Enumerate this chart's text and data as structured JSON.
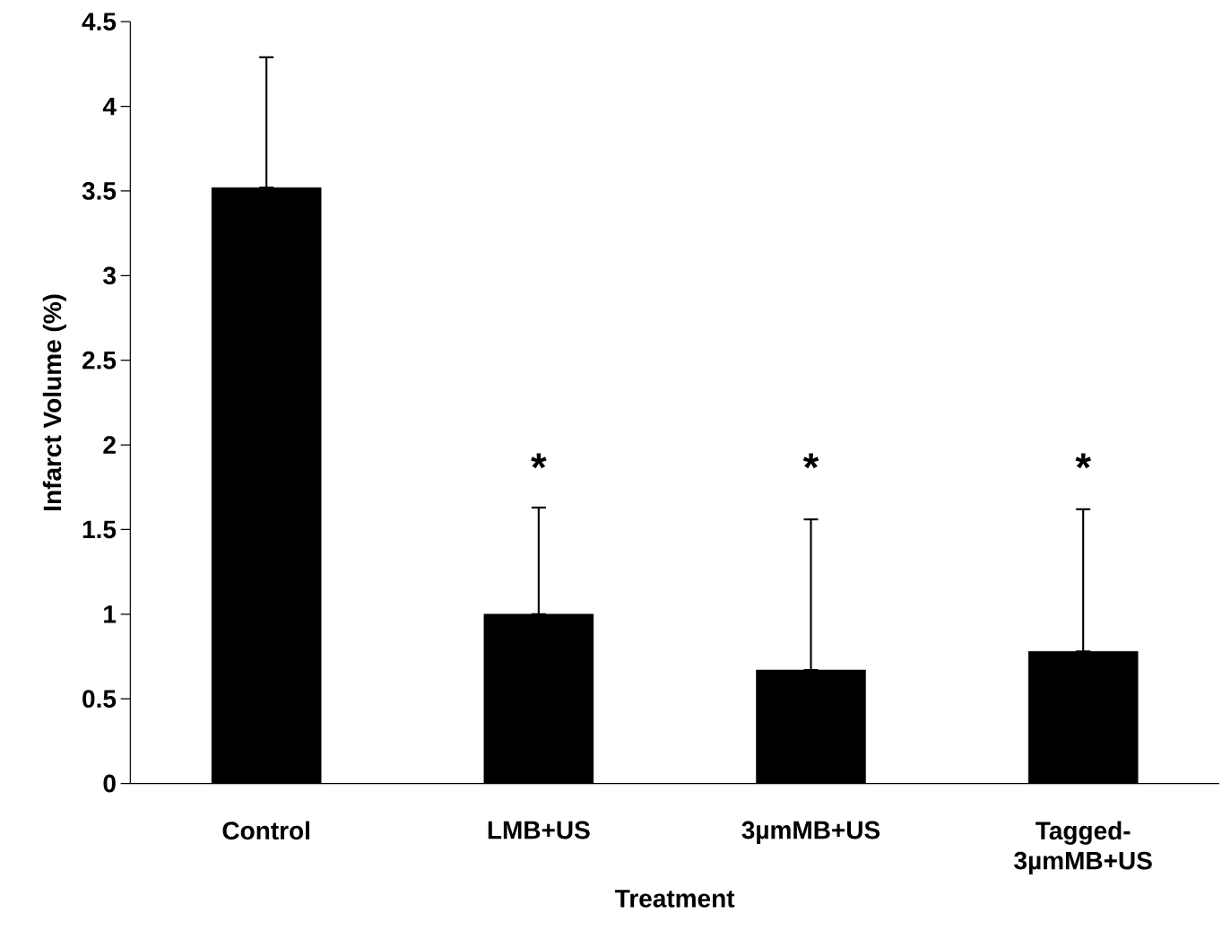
{
  "chart_data": {
    "type": "bar",
    "xlabel": "Treatment",
    "ylabel": "Infarct Volume (%)",
    "categories": [
      "Control",
      "LMB+US",
      "3µmMB+US",
      "Tagged-3µmMB+US"
    ],
    "values": [
      3.52,
      1.0,
      0.67,
      0.78
    ],
    "errors": [
      [
        3.52,
        4.29
      ],
      [
        1.0,
        1.63
      ],
      [
        0.67,
        1.56
      ],
      [
        0.78,
        1.62
      ]
    ],
    "color": "#000000",
    "ylim": [
      0,
      4.5
    ],
    "yticks": [
      0,
      0.5,
      1,
      1.5,
      2,
      2.5,
      3,
      3.5,
      4,
      4.5
    ],
    "annotations": [
      "*",
      "*",
      "*"
    ]
  }
}
